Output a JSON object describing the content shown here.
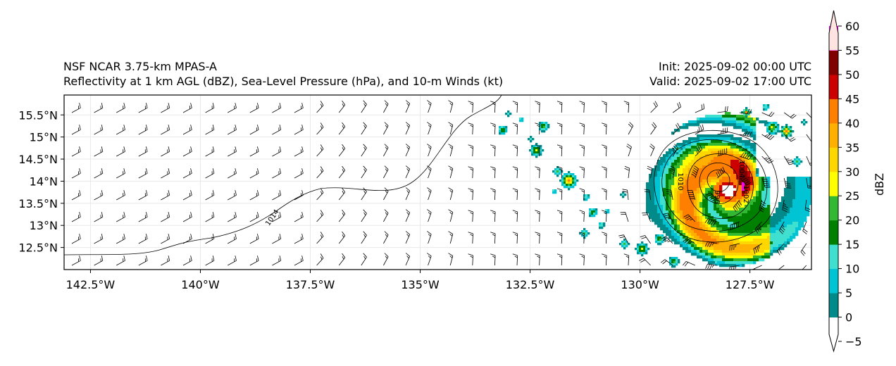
{
  "header": {
    "model": "NSF NCAR 3.75-km MPAS-A",
    "description": "Reflectivity at 1 km AGL (dBZ), Sea-Level Pressure (hPa), and 10-m Winds (kt)",
    "init": "Init: 2025-09-02 00:00 UTC",
    "valid": "Valid: 2025-09-02 17:00 UTC"
  },
  "map": {
    "lon_range": [
      -143.1,
      -126.1
    ],
    "lat_range": [
      12.0,
      15.95
    ],
    "lon_ticks": [
      "142.5°W",
      "140°W",
      "137.5°W",
      "135°W",
      "132.5°W",
      "130°W",
      "127.5°W"
    ],
    "lon_tick_values": [
      -142.5,
      -140,
      -137.5,
      -135,
      -132.5,
      -130,
      -127.5
    ],
    "lat_ticks": [
      "12.5°N",
      "13°N",
      "13.5°N",
      "14°N",
      "14.5°N",
      "15°N",
      "15.5°N"
    ],
    "lat_tick_values": [
      12.5,
      13,
      13.5,
      14,
      14.5,
      15,
      15.5
    ],
    "isobar_labels": [
      "1014",
      "1010",
      "996",
      "1002",
      "1004"
    ],
    "storm_center": {
      "lon": -128.0,
      "lat": 13.8
    }
  },
  "colorbar": {
    "label": "dBZ",
    "ticks": [
      "60",
      "55",
      "50",
      "45",
      "40",
      "35",
      "30",
      "25",
      "20",
      "15",
      "10",
      "5",
      "0",
      "−5"
    ],
    "bins": [
      {
        "from": -5,
        "to": 0,
        "color": "#ffffff"
      },
      {
        "from": 0,
        "to": 5,
        "color": "#008a8a"
      },
      {
        "from": 5,
        "to": 10,
        "color": "#00c4d4"
      },
      {
        "from": 10,
        "to": 15,
        "color": "#40e0d0"
      },
      {
        "from": 15,
        "to": 20,
        "color": "#008000"
      },
      {
        "from": 20,
        "to": 25,
        "color": "#33b833"
      },
      {
        "from": 25,
        "to": 30,
        "color": "#ffff00"
      },
      {
        "from": 30,
        "to": 35,
        "color": "#ffd700"
      },
      {
        "from": 35,
        "to": 40,
        "color": "#ffb000"
      },
      {
        "from": 40,
        "to": 45,
        "color": "#ff8000"
      },
      {
        "from": 45,
        "to": 50,
        "color": "#cc0000"
      },
      {
        "from": 50,
        "to": 55,
        "color": "#800000"
      },
      {
        "from": 55,
        "to": 60,
        "color": "#ff00ff"
      },
      {
        "from": 60,
        "to": 65,
        "color": "#ffe4e1"
      }
    ]
  }
}
